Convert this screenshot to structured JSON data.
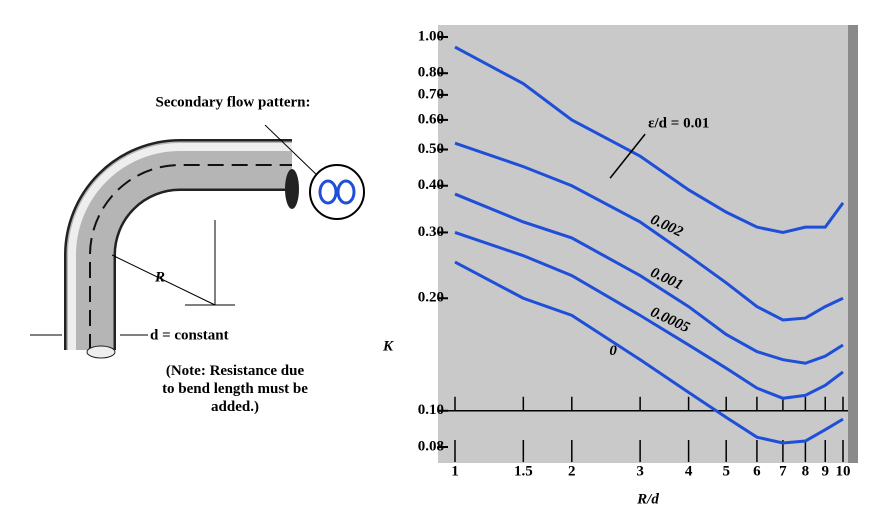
{
  "diagram": {
    "flow_label": "Secondary flow pattern:",
    "radius_label": "R",
    "diameter_label": "d = constant",
    "note": "(Note: Resistance due to bend length must be added.)"
  },
  "chart_data": {
    "type": "line",
    "xscale": "log",
    "yscale": "log",
    "xlabel": "R/d",
    "ylabel": "K",
    "x": [
      1,
      1.5,
      2,
      3,
      4,
      5,
      6,
      7,
      8,
      9,
      10
    ],
    "xlim": [
      1,
      10
    ],
    "ylim": [
      0.08,
      1.0
    ],
    "xticks": [
      1,
      1.5,
      2,
      3,
      4,
      5,
      6,
      7,
      8,
      9,
      10
    ],
    "yticks": [
      0.08,
      {
        "value": 0.1,
        "label": "0.10"
      },
      {
        "value": 0.2,
        "label": "0.20"
      },
      {
        "value": 0.3,
        "label": "0.30"
      },
      {
        "value": 0.4,
        "label": "0.40"
      },
      {
        "value": 0.5,
        "label": "0.50"
      },
      {
        "value": 0.6,
        "label": "0.60"
      },
      {
        "value": 0.7,
        "label": "0.70"
      },
      {
        "value": 0.8,
        "label": "0.80"
      },
      {
        "value": 1.0,
        "label": "1.00"
      }
    ],
    "series": [
      {
        "name": "ε/d = 0.01",
        "color": "#1f4fd8",
        "values": [
          0.94,
          0.75,
          0.6,
          0.48,
          0.39,
          0.34,
          0.31,
          0.3,
          0.31,
          0.31,
          0.36
        ]
      },
      {
        "name": "0.002",
        "color": "#1f4fd8",
        "values": [
          0.52,
          0.45,
          0.4,
          0.32,
          0.26,
          0.22,
          0.19,
          0.175,
          0.177,
          0.19,
          0.2
        ]
      },
      {
        "name": "0.001",
        "color": "#1f4fd8",
        "values": [
          0.38,
          0.32,
          0.29,
          0.23,
          0.19,
          0.16,
          0.144,
          0.137,
          0.134,
          0.14,
          0.15
        ]
      },
      {
        "name": "0.0005",
        "color": "#1f4fd8",
        "values": [
          0.3,
          0.26,
          0.23,
          0.18,
          0.15,
          0.13,
          0.115,
          0.108,
          0.11,
          0.117,
          0.127
        ]
      },
      {
        "name": "0",
        "color": "#1f4fd8",
        "values": [
          0.25,
          0.2,
          0.18,
          0.137,
          0.112,
          0.096,
          0.085,
          0.082,
          0.083,
          0.089,
          0.095
        ]
      }
    ]
  }
}
